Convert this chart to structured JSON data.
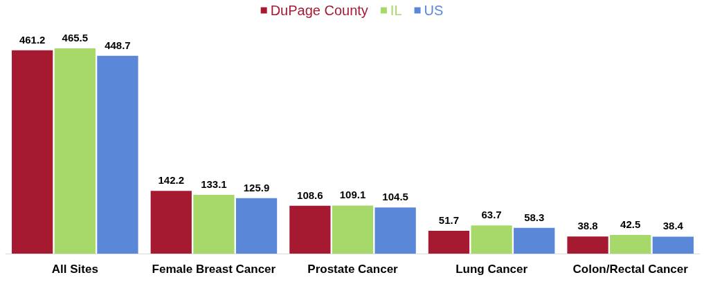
{
  "chart_data": {
    "type": "bar",
    "categories": [
      "All Sites",
      "Female Breast Cancer",
      "Prostate Cancer",
      "Lung Cancer",
      "Colon/Rectal Cancer"
    ],
    "series": [
      {
        "name": "DuPage County",
        "color": "#a51931",
        "values": [
          461.2,
          142.2,
          108.6,
          51.7,
          38.8
        ]
      },
      {
        "name": "IL",
        "color": "#a6d96a",
        "values": [
          465.5,
          133.1,
          109.1,
          63.7,
          42.5
        ]
      },
      {
        "name": "US",
        "color": "#5b87d9",
        "values": [
          448.7,
          125.9,
          104.5,
          58.3,
          38.4
        ]
      }
    ],
    "data_labels": true,
    "legend": "top",
    "grid": false
  }
}
